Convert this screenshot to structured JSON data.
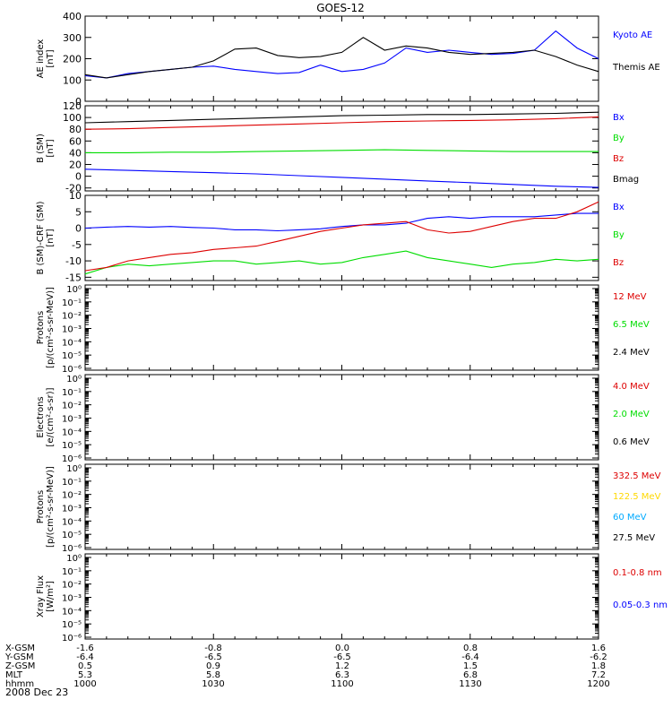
{
  "title": "GOES-12",
  "date_label": "2008 Dec 23",
  "ephemeris": {
    "rows": [
      {
        "label": "X-GSM",
        "values": [
          "-1.6",
          "-0.8",
          "0.0",
          "0.8",
          "1.6"
        ]
      },
      {
        "label": "Y-GSM",
        "values": [
          "-6.4",
          "-6.5",
          "-6.5",
          "-6.4",
          "-6.2"
        ]
      },
      {
        "label": "Z-GSM",
        "values": [
          "0.5",
          "0.9",
          "1.2",
          "1.5",
          "1.8"
        ]
      },
      {
        "label": "MLT",
        "values": [
          "5.3",
          "5.8",
          "6.3",
          "6.8",
          "7.2"
        ]
      },
      {
        "label": "hhmm",
        "values": [
          "1000",
          "1030",
          "1100",
          "1130",
          "1200"
        ]
      }
    ]
  },
  "colors": {
    "black": "#000000",
    "blue": "#0000ff",
    "green": "#00dd00",
    "red": "#dd0000",
    "yellow": "#ffd800",
    "cyan": "#00aaff"
  },
  "chart_data": [
    {
      "type": "line",
      "ylabel": "AE index [nT]",
      "ylim": [
        0,
        400
      ],
      "yticks": [
        0,
        100,
        200,
        300,
        400
      ],
      "x_minutes": [
        0,
        5,
        10,
        15,
        20,
        25,
        30,
        35,
        40,
        45,
        50,
        55,
        60,
        65,
        70,
        75,
        80,
        85,
        90,
        95,
        100,
        105,
        110,
        115,
        120
      ],
      "series": [
        {
          "name": "Kyoto AE",
          "color": "#0000ff",
          "values": [
            120,
            110,
            130,
            140,
            150,
            160,
            165,
            150,
            140,
            130,
            135,
            170,
            140,
            150,
            180,
            250,
            230,
            240,
            230,
            220,
            225,
            240,
            330,
            250,
            200
          ]
        },
        {
          "name": "Themis AE",
          "color": "#000000",
          "values": [
            125,
            110,
            125,
            140,
            150,
            160,
            190,
            245,
            250,
            215,
            205,
            210,
            230,
            300,
            240,
            260,
            250,
            230,
            220,
            225,
            230,
            240,
            210,
            170,
            140
          ]
        }
      ]
    },
    {
      "type": "line",
      "ylabel": "B (SM) [nT]",
      "ylim": [
        -25,
        120
      ],
      "yticks": [
        -20,
        0,
        20,
        40,
        60,
        80,
        100,
        120
      ],
      "x_minutes": [
        0,
        10,
        20,
        30,
        40,
        50,
        60,
        70,
        80,
        90,
        100,
        110,
        120
      ],
      "series": [
        {
          "name": "Bx",
          "color": "#0000ff",
          "values": [
            12,
            10,
            8,
            6,
            4,
            1,
            -2,
            -5,
            -8,
            -11,
            -14,
            -17,
            -19
          ]
        },
        {
          "name": "By",
          "color": "#00dd00",
          "values": [
            40,
            40,
            41,
            41,
            42,
            43,
            44,
            45,
            44,
            43,
            42,
            42,
            42
          ]
        },
        {
          "name": "Bz",
          "color": "#dd0000",
          "values": [
            80,
            81,
            83,
            85,
            87,
            89,
            91,
            93,
            94,
            95,
            96,
            98,
            101
          ]
        },
        {
          "name": "Bmag",
          "color": "#000000",
          "values": [
            91,
            93,
            95,
            97,
            99,
            101,
            103,
            104,
            105,
            105,
            106,
            107,
            109
          ]
        }
      ]
    },
    {
      "type": "line",
      "ylabel": "B (SM)-CRF (SM) [nT]",
      "ylim": [
        -16,
        10
      ],
      "yticks": [
        -15,
        -10,
        -5,
        0,
        5,
        10
      ],
      "x_minutes": [
        0,
        5,
        10,
        15,
        20,
        25,
        30,
        35,
        40,
        45,
        50,
        55,
        60,
        65,
        70,
        75,
        80,
        85,
        90,
        95,
        100,
        105,
        110,
        115,
        120
      ],
      "series": [
        {
          "name": "Bx",
          "color": "#0000ff",
          "values": [
            0,
            0.3,
            0.5,
            0.3,
            0.5,
            0.2,
            0,
            -0.5,
            -0.5,
            -0.8,
            -0.5,
            -0.2,
            0.5,
            1,
            1,
            1.5,
            3,
            3.5,
            3,
            3.5,
            3.5,
            3.5,
            4,
            4.5,
            4.5
          ]
        },
        {
          "name": "By",
          "color": "#00dd00",
          "values": [
            -14,
            -12,
            -11,
            -11.5,
            -11,
            -10.5,
            -10,
            -10,
            -11,
            -10.5,
            -10,
            -11,
            -10.5,
            -9,
            -8,
            -7,
            -9,
            -10,
            -11,
            -12,
            -11,
            -10.5,
            -9.5,
            -10,
            -9.5
          ]
        },
        {
          "name": "Bz",
          "color": "#dd0000",
          "values": [
            -13,
            -12,
            -10,
            -9,
            -8,
            -7.5,
            -6.5,
            -6,
            -5.5,
            -4,
            -2.5,
            -1,
            0,
            1,
            1.5,
            2,
            -0.5,
            -1.5,
            -1,
            0.5,
            2,
            3,
            3,
            5,
            8
          ]
        }
      ]
    },
    {
      "type": "line",
      "ylabel": "Protons [p/(cm²-s-sr-MeV)]",
      "yscale": "log",
      "ytick_labels": [
        "10⁰",
        "10⁻¹",
        "10⁻²",
        "10⁻³",
        "10⁻⁴",
        "10⁻⁵",
        "10⁻⁶"
      ],
      "series": [
        {
          "name": "12 MeV",
          "color": "#dd0000"
        },
        {
          "name": "6.5 MeV",
          "color": "#00dd00"
        },
        {
          "name": "2.4 MeV",
          "color": "#000000"
        }
      ]
    },
    {
      "type": "line",
      "ylabel": "Electrons [e/(cm²-s-sr)]",
      "yscale": "log",
      "ytick_labels": [
        "10⁰",
        "10⁻¹",
        "10⁻²",
        "10⁻³",
        "10⁻⁴",
        "10⁻⁵",
        "10⁻⁶"
      ],
      "series": [
        {
          "name": "4.0 MeV",
          "color": "#dd0000"
        },
        {
          "name": "2.0 MeV",
          "color": "#00dd00"
        },
        {
          "name": "0.6 MeV",
          "color": "#000000"
        }
      ]
    },
    {
      "type": "line",
      "ylabel": "Protons [p/(cm²-s-sr-MeV)]",
      "yscale": "log",
      "ytick_labels": [
        "10⁰",
        "10⁻¹",
        "10⁻²",
        "10⁻³",
        "10⁻⁴",
        "10⁻⁵",
        "10⁻⁶"
      ],
      "series": [
        {
          "name": "332.5 MeV",
          "color": "#dd0000"
        },
        {
          "name": "122.5 MeV",
          "color": "#ffd800"
        },
        {
          "name": "60 MeV",
          "color": "#00aaff"
        },
        {
          "name": "27.5 MeV",
          "color": "#000000"
        }
      ]
    },
    {
      "type": "line",
      "ylabel": "Xray Flux [W/m²]",
      "yscale": "log",
      "ytick_labels": [
        "10⁰",
        "10⁻¹",
        "10⁻²",
        "10⁻³",
        "10⁻⁴",
        "10⁻⁵",
        "10⁻⁶"
      ],
      "series": [
        {
          "name": "0.1-0.8 nm",
          "color": "#dd0000"
        },
        {
          "name": "0.05-0.3 nm",
          "color": "#0000ff"
        }
      ]
    }
  ]
}
